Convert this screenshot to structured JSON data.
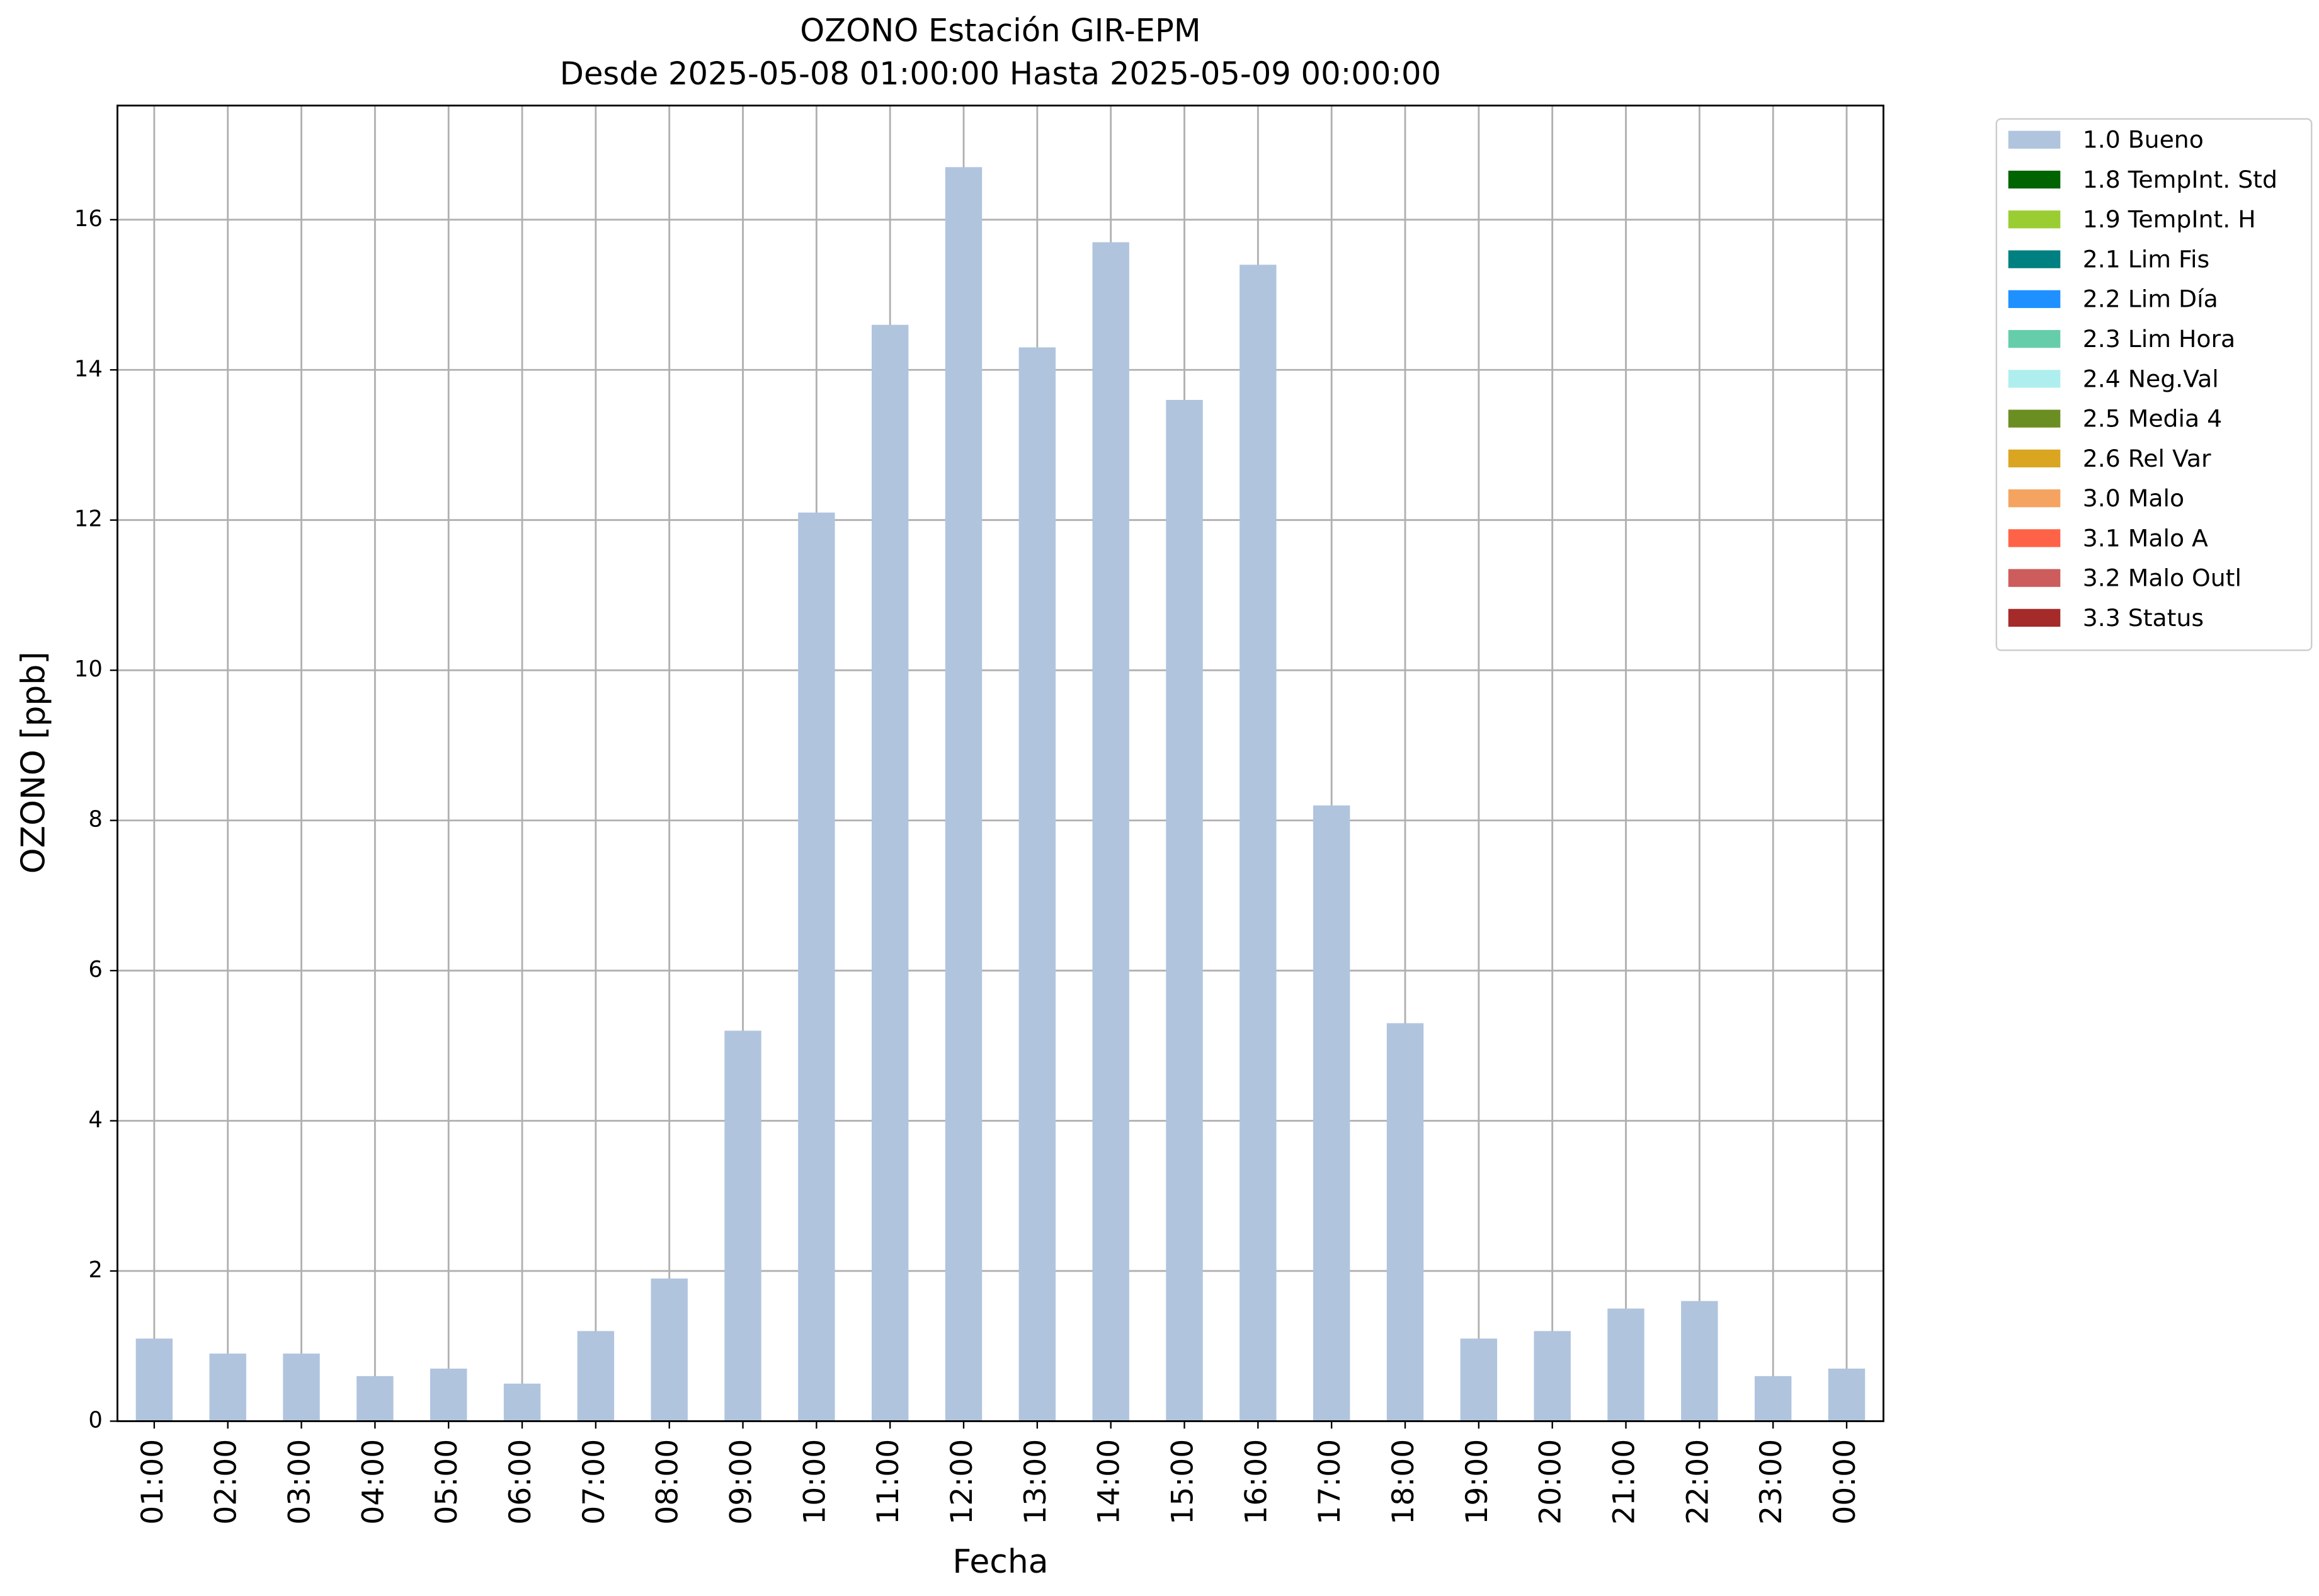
{
  "chart_data": {
    "type": "stacked_bar",
    "title": "OZONO Estación GIR-EPM",
    "subtitle": "Desde 2025-05-08 01:00:00 Hasta 2025-05-09 00:00:00",
    "x_label": "Fecha",
    "y_label": "OZONO [ppb]",
    "categories": [
      "01:00",
      "02:00",
      "03:00",
      "04:00",
      "05:00",
      "06:00",
      "07:00",
      "08:00",
      "09:00",
      "10:00",
      "11:00",
      "12:00",
      "13:00",
      "14:00",
      "15:00",
      "16:00",
      "17:00",
      "18:00",
      "19:00",
      "20:00",
      "21:00",
      "22:00",
      "23:00",
      "00:00"
    ],
    "series": [
      {
        "name": "1.0 Bueno",
        "color": "#b0c4de",
        "values": [
          1.1,
          0.9,
          0.9,
          0.6,
          0.7,
          0.5,
          1.2,
          1.9,
          5.2,
          12.1,
          14.6,
          16.7,
          14.3,
          15.7,
          13.6,
          15.4,
          8.2,
          5.3,
          1.1,
          1.2,
          1.5,
          1.6,
          0.6,
          0.7
        ]
      },
      {
        "name": "1.8 TempInt. Std",
        "color": "#006400",
        "values": [
          0,
          0,
          0,
          0,
          0,
          0,
          0,
          0,
          0,
          0,
          0,
          0,
          0,
          0,
          0,
          0,
          0,
          0,
          0,
          0,
          0,
          0,
          0,
          0
        ]
      },
      {
        "name": "1.9 TempInt. H",
        "color": "#9acd32",
        "values": [
          0,
          0,
          0,
          0,
          0,
          0,
          0,
          0,
          0,
          0,
          0,
          0,
          0,
          0,
          0,
          0,
          0,
          0,
          0,
          0,
          0,
          0,
          0,
          0
        ]
      },
      {
        "name": "2.1 Lim Fis",
        "color": "#008080",
        "values": [
          0,
          0,
          0,
          0,
          0,
          0,
          0,
          0,
          0,
          0,
          0,
          0,
          0,
          0,
          0,
          0,
          0,
          0,
          0,
          0,
          0,
          0,
          0,
          0
        ]
      },
      {
        "name": "2.2 Lim Día",
        "color": "#1e90ff",
        "values": [
          0,
          0,
          0,
          0,
          0,
          0,
          0,
          0,
          0,
          0,
          0,
          0,
          0,
          0,
          0,
          0,
          0,
          0,
          0,
          0,
          0,
          0,
          0,
          0
        ]
      },
      {
        "name": "2.3 Lim Hora",
        "color": "#66cdaa",
        "values": [
          0,
          0,
          0,
          0,
          0,
          0,
          0,
          0,
          0,
          0,
          0,
          0,
          0,
          0,
          0,
          0,
          0,
          0,
          0,
          0,
          0,
          0,
          0,
          0
        ]
      },
      {
        "name": "2.4 Neg.Val",
        "color": "#afeeee",
        "values": [
          0,
          0,
          0,
          0,
          0,
          0,
          0,
          0,
          0,
          0,
          0,
          0,
          0,
          0,
          0,
          0,
          0,
          0,
          0,
          0,
          0,
          0,
          0,
          0
        ]
      },
      {
        "name": "2.5 Media 4",
        "color": "#6b8e23",
        "values": [
          0,
          0,
          0,
          0,
          0,
          0,
          0,
          0,
          0,
          0,
          0,
          0,
          0,
          0,
          0,
          0,
          0,
          0,
          0,
          0,
          0,
          0,
          0,
          0
        ]
      },
      {
        "name": "2.6 Rel Var",
        "color": "#daa520",
        "values": [
          0,
          0,
          0,
          0,
          0,
          0,
          0,
          0,
          0,
          0,
          0,
          0,
          0,
          0,
          0,
          0,
          0,
          0,
          0,
          0,
          0,
          0,
          0,
          0
        ]
      },
      {
        "name": "3.0 Malo",
        "color": "#f4a460",
        "values": [
          0,
          0,
          0,
          0,
          0,
          0,
          0,
          0,
          0,
          0,
          0,
          0,
          0,
          0,
          0,
          0,
          0,
          0,
          0,
          0,
          0,
          0,
          0,
          0
        ]
      },
      {
        "name": "3.1 Malo A",
        "color": "#ff6347",
        "values": [
          0,
          0,
          0,
          0,
          0,
          0,
          0,
          0,
          0,
          0,
          0,
          0,
          0,
          0,
          0,
          0,
          0,
          0,
          0,
          0,
          0,
          0,
          0,
          0
        ]
      },
      {
        "name": "3.2 Malo Outl",
        "color": "#cd5c5c",
        "values": [
          0,
          0,
          0,
          0,
          0,
          0,
          0,
          0,
          0,
          0,
          0,
          0,
          0,
          0,
          0,
          0,
          0,
          0,
          0,
          0,
          0,
          0,
          0,
          0
        ]
      },
      {
        "name": "3.3 Status",
        "color": "#a52a2a",
        "values": [
          0,
          0,
          0,
          0,
          0,
          0,
          0,
          0,
          0,
          0,
          0,
          0,
          0,
          0,
          0,
          0,
          0,
          0,
          0,
          0,
          0,
          0,
          0,
          0
        ]
      }
    ],
    "ylim": [
      0,
      17.52
    ],
    "yticks": [
      0,
      2,
      4,
      6,
      8,
      10,
      12,
      14,
      16
    ],
    "grid": true,
    "legend": "outside-upper-right"
  }
}
